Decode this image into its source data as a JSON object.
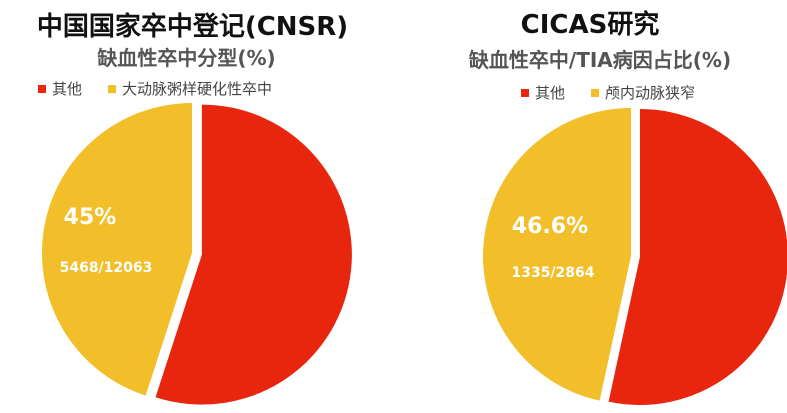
{
  "colors": {
    "other": "#E8260E",
    "yellow": "#F2BF2A"
  },
  "chart_data": [
    {
      "type": "pie",
      "title": "中国国家卒中登记(CNSR)",
      "subtitle": "缺血性卒中分型(%)",
      "legend": [
        "其他",
        "大动脉粥样硬化性卒中"
      ],
      "slices": [
        {
          "label": "其他",
          "value": 55
        },
        {
          "label": "大动脉粥样硬化性卒中",
          "value": 45
        }
      ],
      "data_labels": {
        "percent": "45%",
        "fraction": "5468/12063"
      },
      "legend_position": "top-left"
    },
    {
      "type": "pie",
      "title": "CICAS研究",
      "subtitle": "缺血性卒中/TIA病因占比(%)",
      "legend": [
        "其他",
        "颅内动脉狭窄"
      ],
      "slices": [
        {
          "label": "其他",
          "value": 53.4
        },
        {
          "label": "颅内动脉狭窄",
          "value": 46.6
        }
      ],
      "data_labels": {
        "percent": "46.6%",
        "fraction": "1335/2864"
      },
      "legend_position": "top"
    }
  ]
}
